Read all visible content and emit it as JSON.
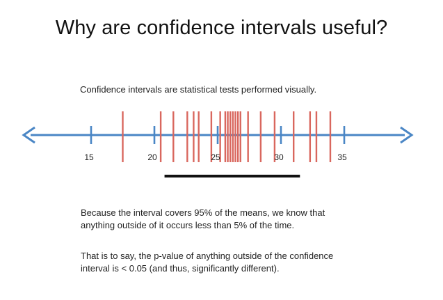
{
  "slide": {
    "title": "Why are confidence intervals useful?",
    "subtitle": "Confidence intervals are statistical tests performed visually.",
    "paragraph1_line1": "Because the interval covers 95% of the means, we know that",
    "paragraph1_line2": "anything outside of it occurs less than 5% of the time.",
    "paragraph2_line1": "That is to say, the p-value of anything outside of the confidence",
    "paragraph2_line2": "interval is < 0.05 (and thus, significantly different)."
  },
  "number_line": {
    "tick_labels": [
      "15",
      "20",
      "25",
      "30",
      "35"
    ],
    "tick_values": [
      15,
      20,
      25,
      30,
      35
    ],
    "sample_means": [
      17.5,
      20.5,
      21.5,
      22.6,
      23.1,
      23.5,
      24.5,
      25.2,
      25.6,
      25.8,
      26.0,
      26.2,
      26.4,
      26.6,
      26.8,
      27.4,
      28.4,
      29.5,
      31.0,
      32.3,
      32.8,
      33.9
    ],
    "interval": [
      20.8,
      31.5
    ],
    "colors": {
      "axis": "#4a86c5",
      "means": "#d9675e",
      "interval": "#111111"
    }
  }
}
